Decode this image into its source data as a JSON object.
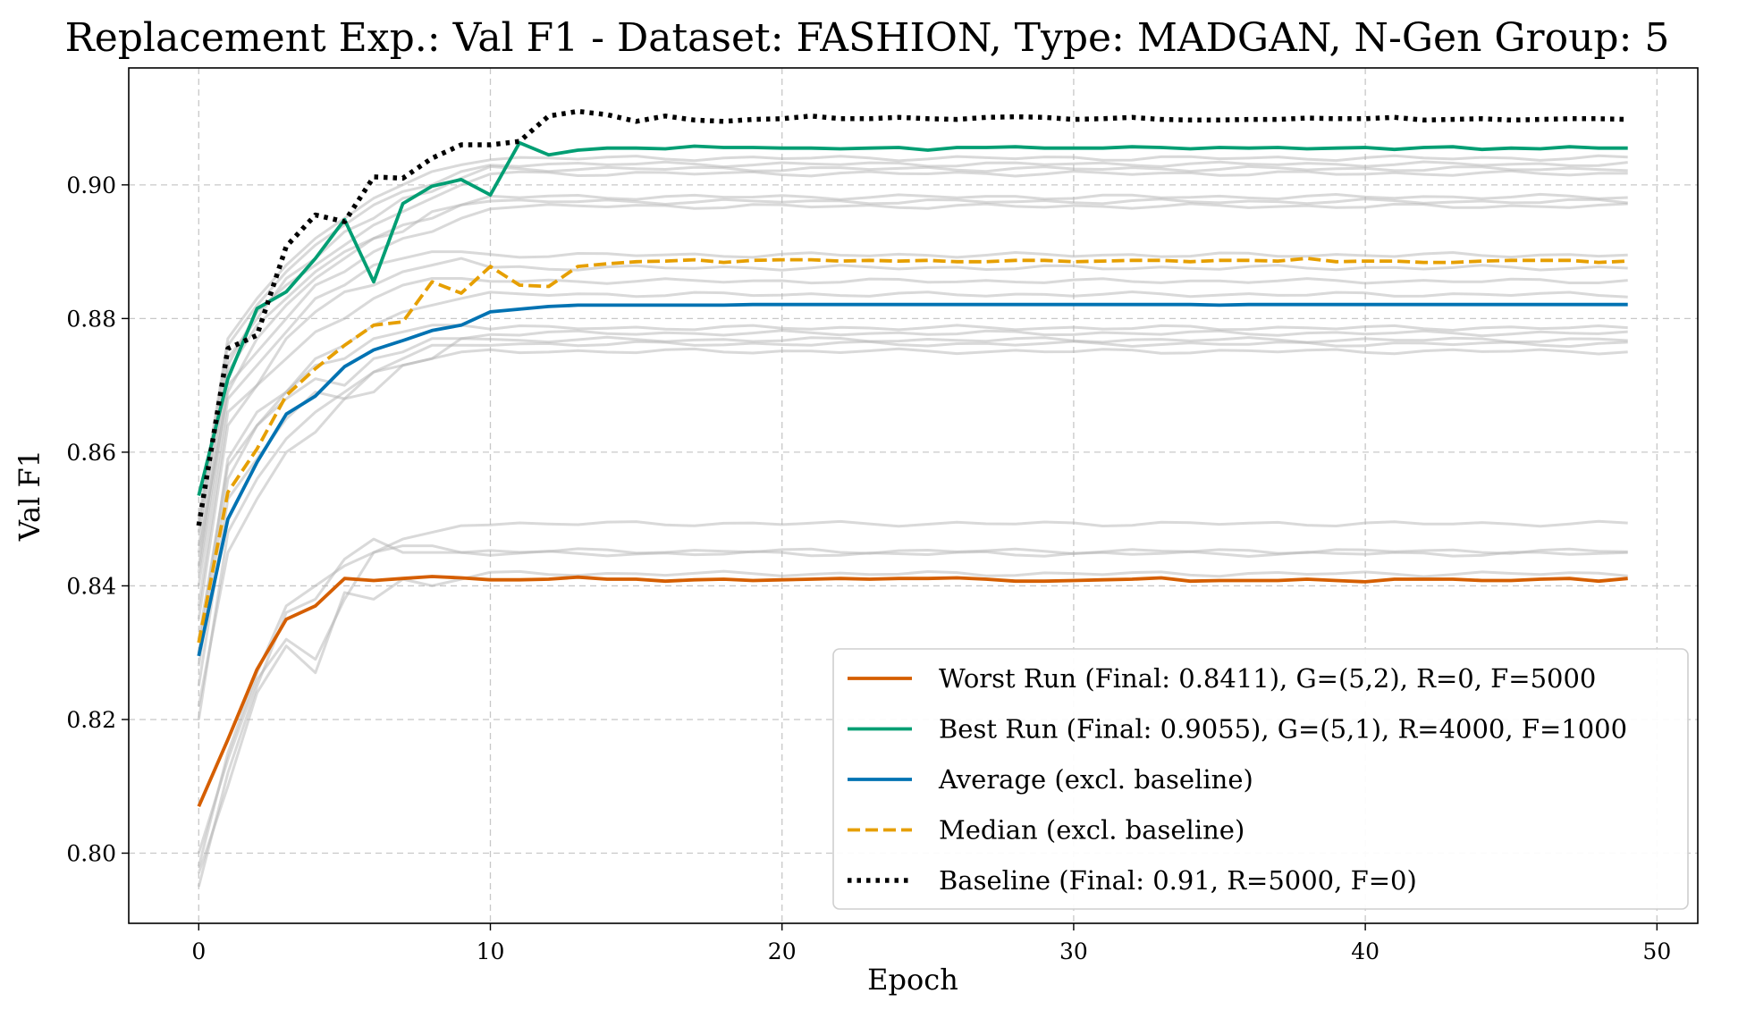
{
  "chart_data": {
    "type": "line",
    "title": "Replacement Exp.: Val F1 - Dataset: FASHION, Type: MADGAN, N-Gen Group: 5",
    "xlabel": "Epoch",
    "ylabel": "Val F1",
    "xlim": [
      -2.4,
      51.4
    ],
    "ylim": [
      0.7895,
      0.9175
    ],
    "xticks": [
      0,
      10,
      20,
      30,
      40,
      50
    ],
    "yticks": [
      0.8,
      0.82,
      0.84,
      0.86,
      0.88,
      0.9
    ],
    "xtick_labels": [
      "0",
      "10",
      "20",
      "30",
      "40",
      "50"
    ],
    "ytick_labels": [
      "0.80",
      "0.82",
      "0.84",
      "0.86",
      "0.88",
      "0.90"
    ],
    "grid": true,
    "legend_position": "bottom-right",
    "x": [
      0,
      1,
      2,
      3,
      4,
      5,
      6,
      7,
      8,
      9,
      10,
      11,
      12,
      13,
      14,
      15,
      16,
      17,
      18,
      19,
      20,
      21,
      22,
      23,
      24,
      25,
      26,
      27,
      28,
      29,
      30,
      31,
      32,
      33,
      34,
      35,
      36,
      37,
      38,
      39,
      40,
      41,
      42,
      43,
      44,
      45,
      46,
      47,
      48,
      49
    ],
    "series": [
      {
        "name": "Worst Run (Final: 0.8411), G=(5,2), R=0, F=5000",
        "color": "#d55e00",
        "style": "solid",
        "values": [
          0.807,
          0.817,
          0.8275,
          0.835,
          0.837,
          0.8411,
          0.8408,
          0.8411,
          0.8414,
          0.8412,
          0.8409,
          0.8409,
          0.841,
          0.8413,
          0.841,
          0.841,
          0.8407,
          0.8409,
          0.841,
          0.8408,
          0.8409,
          0.841,
          0.8411,
          0.841,
          0.8411,
          0.8411,
          0.8412,
          0.841,
          0.8407,
          0.8407,
          0.8408,
          0.8409,
          0.841,
          0.8412,
          0.8407,
          0.8408,
          0.8408,
          0.8408,
          0.841,
          0.8408,
          0.8406,
          0.841,
          0.841,
          0.841,
          0.8408,
          0.8408,
          0.841,
          0.8411,
          0.8407,
          0.8411
        ]
      },
      {
        "name": "Best Run (Final: 0.9055), G=(5,1), R=4000, F=1000",
        "color": "#009e73",
        "style": "solid",
        "values": [
          0.8535,
          0.871,
          0.8815,
          0.884,
          0.889,
          0.8948,
          0.8855,
          0.8972,
          0.8998,
          0.9008,
          0.8985,
          0.9063,
          0.9045,
          0.9052,
          0.9055,
          0.9055,
          0.9054,
          0.9058,
          0.9056,
          0.9056,
          0.9055,
          0.9055,
          0.9054,
          0.9055,
          0.9056,
          0.9052,
          0.9056,
          0.9056,
          0.9057,
          0.9055,
          0.9055,
          0.9055,
          0.9057,
          0.9056,
          0.9054,
          0.9056,
          0.9055,
          0.9056,
          0.9054,
          0.9055,
          0.9056,
          0.9053,
          0.9056,
          0.9057,
          0.9053,
          0.9055,
          0.9054,
          0.9057,
          0.9055,
          0.9055
        ]
      },
      {
        "name": "Average (excl. baseline)",
        "color": "#0072b2",
        "style": "solid",
        "values": [
          0.8295,
          0.85,
          0.8585,
          0.8657,
          0.8684,
          0.8728,
          0.8753,
          0.8767,
          0.8782,
          0.879,
          0.881,
          0.8814,
          0.8818,
          0.882,
          0.882,
          0.882,
          0.882,
          0.882,
          0.882,
          0.8821,
          0.8821,
          0.8821,
          0.8821,
          0.8821,
          0.8821,
          0.8821,
          0.8821,
          0.8821,
          0.8821,
          0.8821,
          0.8821,
          0.8821,
          0.8821,
          0.8821,
          0.8821,
          0.882,
          0.8821,
          0.8821,
          0.8821,
          0.8821,
          0.8821,
          0.8821,
          0.8821,
          0.8821,
          0.8821,
          0.8821,
          0.8821,
          0.8821,
          0.8821,
          0.8821
        ]
      },
      {
        "name": "Median (excl. baseline)",
        "color": "#e69f00",
        "style": "dashed",
        "values": [
          0.8315,
          0.854,
          0.8605,
          0.8685,
          0.8725,
          0.876,
          0.879,
          0.8795,
          0.8855,
          0.8838,
          0.8878,
          0.885,
          0.8848,
          0.8878,
          0.8882,
          0.8885,
          0.8886,
          0.8888,
          0.8884,
          0.8887,
          0.8888,
          0.8888,
          0.8886,
          0.8887,
          0.8886,
          0.8887,
          0.8885,
          0.8885,
          0.8887,
          0.8887,
          0.8885,
          0.8886,
          0.8887,
          0.8887,
          0.8885,
          0.8887,
          0.8887,
          0.8886,
          0.889,
          0.8885,
          0.8886,
          0.8886,
          0.8884,
          0.8884,
          0.8886,
          0.8887,
          0.8887,
          0.8887,
          0.8884,
          0.8886
        ]
      },
      {
        "name": "Baseline (Final: 0.91, R=5000, F=0)",
        "color": "#000000",
        "style": "dotted",
        "values": [
          0.849,
          0.8755,
          0.8775,
          0.8908,
          0.8955,
          0.8945,
          0.9012,
          0.901,
          0.904,
          0.906,
          0.906,
          0.9065,
          0.9103,
          0.911,
          0.9105,
          0.9095,
          0.9103,
          0.9097,
          0.9095,
          0.9098,
          0.9099,
          0.9103,
          0.9099,
          0.9099,
          0.9101,
          0.9099,
          0.9098,
          0.9101,
          0.9102,
          0.9101,
          0.9098,
          0.9099,
          0.9101,
          0.9098,
          0.9097,
          0.9097,
          0.9098,
          0.9098,
          0.91,
          0.9099,
          0.9099,
          0.9101,
          0.9097,
          0.9098,
          0.9099,
          0.9097,
          0.9098,
          0.9099,
          0.9099,
          0.9098
        ]
      }
    ],
    "background_series": {
      "color": "#b4b4b4",
      "note_free": true,
      "runs": [
        {
          "start": [
            0.8,
            0.814,
            0.826,
            0.832,
            0.829,
            0.838,
            0.845,
            0.847,
            0.848,
            0.849
          ],
          "level": 0.8493
        },
        {
          "start": [
            0.798,
            0.815,
            0.827,
            0.837,
            0.84,
            0.843,
            0.845,
            0.846,
            0.846,
            0.845
          ],
          "level": 0.8452
        },
        {
          "start": [
            0.795,
            0.812,
            0.825,
            0.836,
            0.838,
            0.844,
            0.847,
            0.845,
            0.845,
            0.845
          ],
          "level": 0.8448
        },
        {
          "start": [
            0.797,
            0.81,
            0.824,
            0.831,
            0.827,
            0.839,
            0.838,
            0.841,
            0.84,
            0.841
          ],
          "level": 0.8418
        },
        {
          "start": [
            0.82,
            0.848,
            0.856,
            0.862,
            0.866,
            0.869,
            0.872,
            0.873,
            0.874,
            0.875
          ],
          "level": 0.8751
        },
        {
          "start": [
            0.825,
            0.853,
            0.859,
            0.865,
            0.869,
            0.868,
            0.872,
            0.874,
            0.876,
            0.876
          ],
          "level": 0.8762
        },
        {
          "start": [
            0.822,
            0.845,
            0.853,
            0.86,
            0.863,
            0.868,
            0.869,
            0.873,
            0.874,
            0.877
          ],
          "level": 0.8768
        },
        {
          "start": [
            0.828,
            0.856,
            0.864,
            0.868,
            0.871,
            0.87,
            0.874,
            0.875,
            0.877,
            0.877
          ],
          "level": 0.8778
        },
        {
          "start": [
            0.83,
            0.859,
            0.866,
            0.869,
            0.873,
            0.874,
            0.877,
            0.878,
            0.879,
            0.879
          ],
          "level": 0.8786
        },
        {
          "start": [
            0.832,
            0.858,
            0.864,
            0.869,
            0.874,
            0.876,
            0.879,
            0.881,
            0.882,
            0.883
          ],
          "level": 0.8836
        },
        {
          "start": [
            0.835,
            0.864,
            0.87,
            0.874,
            0.878,
            0.88,
            0.883,
            0.885,
            0.886,
            0.886
          ],
          "level": 0.8856
        },
        {
          "start": [
            0.837,
            0.866,
            0.87,
            0.877,
            0.881,
            0.884,
            0.885,
            0.887,
            0.888,
            0.889
          ],
          "level": 0.8876
        },
        {
          "start": [
            0.84,
            0.868,
            0.873,
            0.878,
            0.883,
            0.885,
            0.888,
            0.889,
            0.89,
            0.89
          ],
          "level": 0.8895
        },
        {
          "start": [
            0.842,
            0.87,
            0.875,
            0.88,
            0.885,
            0.887,
            0.89,
            0.892,
            0.893,
            0.895
          ],
          "level": 0.8968
        },
        {
          "start": [
            0.845,
            0.869,
            0.877,
            0.882,
            0.886,
            0.889,
            0.892,
            0.894,
            0.895,
            0.897
          ],
          "level": 0.8975
        },
        {
          "start": [
            0.843,
            0.872,
            0.879,
            0.883,
            0.887,
            0.89,
            0.892,
            0.893,
            0.896,
            0.897
          ],
          "level": 0.8982
        },
        {
          "start": [
            0.846,
            0.873,
            0.881,
            0.885,
            0.888,
            0.891,
            0.894,
            0.896,
            0.898,
            0.9
          ],
          "level": 0.9017
        },
        {
          "start": [
            0.848,
            0.874,
            0.88,
            0.886,
            0.889,
            0.893,
            0.895,
            0.898,
            0.899,
            0.901
          ],
          "level": 0.9024
        },
        {
          "start": [
            0.849,
            0.876,
            0.882,
            0.887,
            0.891,
            0.894,
            0.897,
            0.899,
            0.9,
            0.902
          ],
          "level": 0.9031
        },
        {
          "start": [
            0.85,
            0.877,
            0.883,
            0.888,
            0.892,
            0.895,
            0.898,
            0.9,
            0.902,
            0.903
          ],
          "level": 0.904
        }
      ]
    }
  }
}
